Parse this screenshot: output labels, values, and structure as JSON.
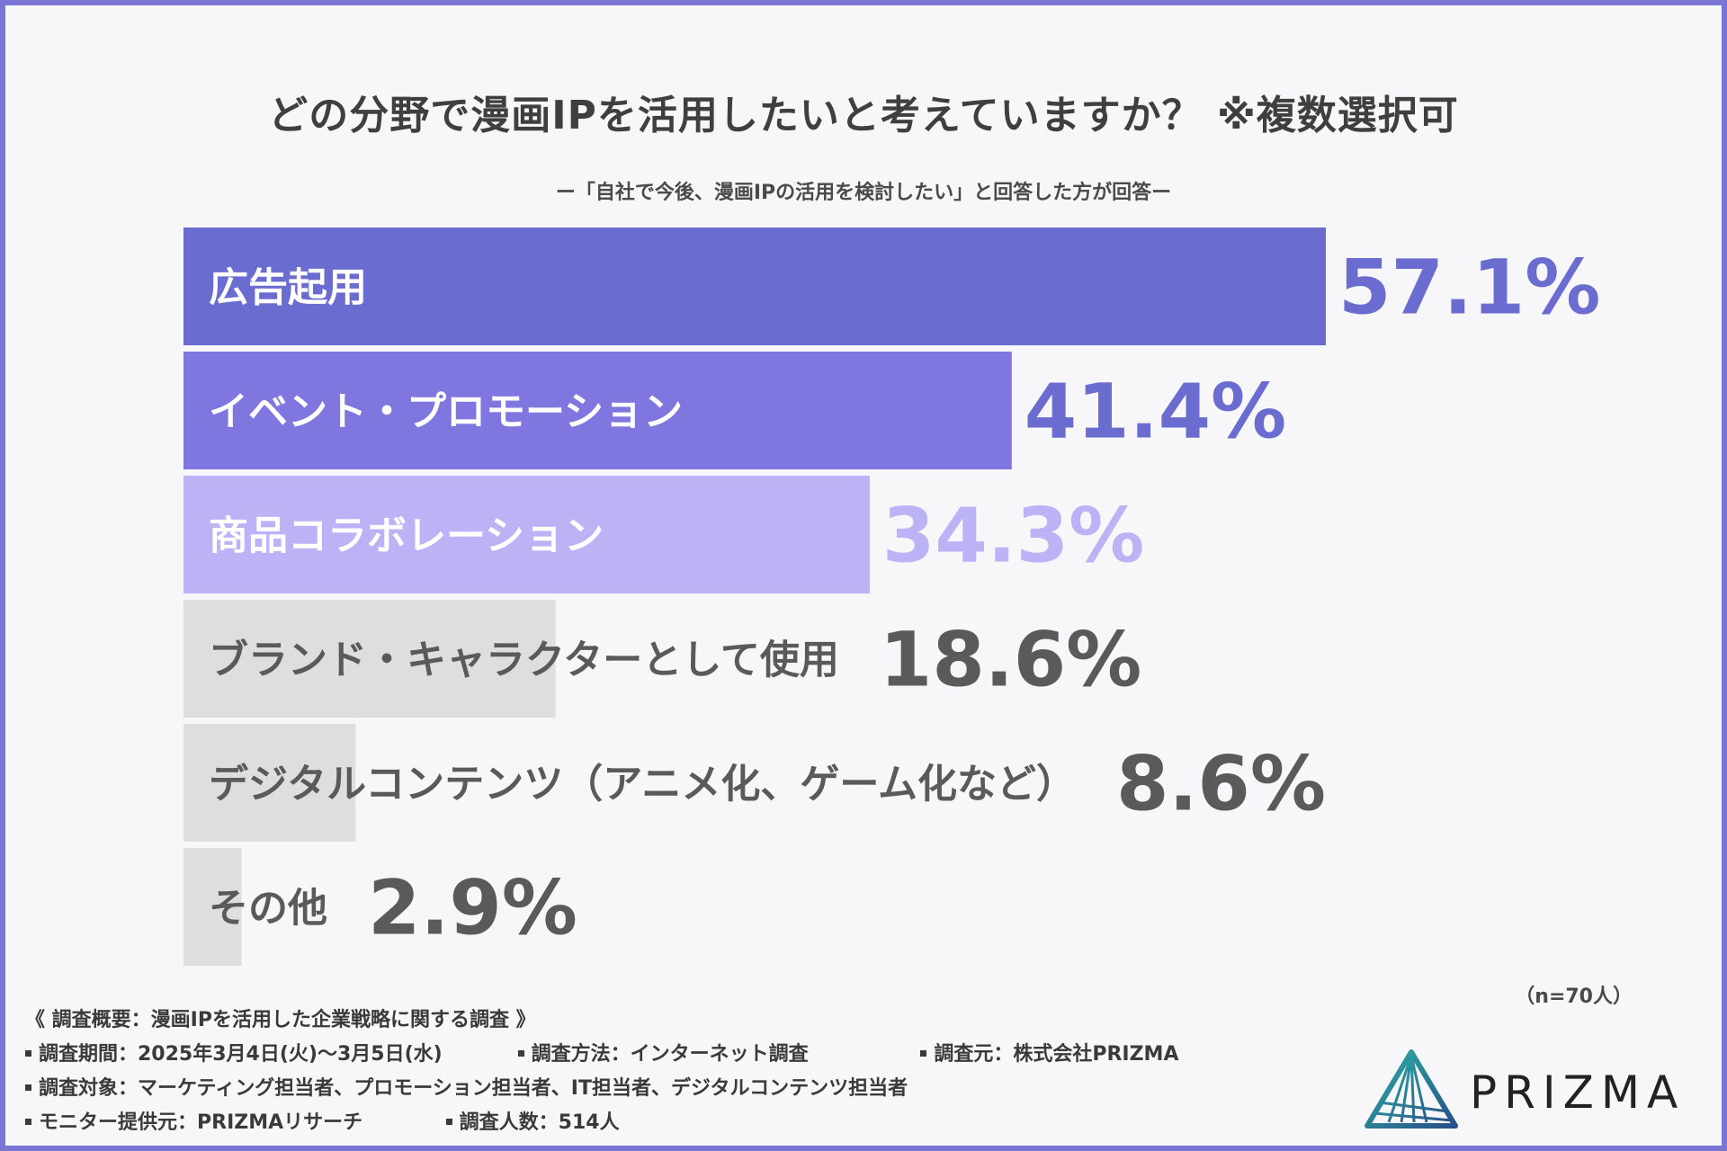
{
  "title": "どの分野で漫画IPを活用したいと考えていますか？ ※複数選択可",
  "subtitle": "ー「自社で今後、漫画IPの活用を検討したい」と回答した方が回答ー",
  "chart_data": {
    "type": "bar",
    "orientation": "horizontal",
    "categories": [
      "広告起用",
      "イベント・プロモーション",
      "商品コラボレーション",
      "ブランド・キャラクターとして使用",
      "デジタルコンテンツ（アニメ化、ゲーム化など）",
      "その他"
    ],
    "values": [
      57.1,
      41.4,
      34.3,
      18.6,
      8.6,
      2.9
    ],
    "value_labels": [
      "57.1%",
      "41.4%",
      "34.3%",
      "18.6%",
      "8.6%",
      "2.9%"
    ],
    "unit": "%",
    "xlim": [
      0,
      100
    ],
    "grid": false,
    "colors": [
      "#6a6ccf",
      "#8076e0",
      "#bcb3f7",
      "#dedede",
      "#dedede",
      "#dedede"
    ],
    "value_colors": [
      "#6a6ccf",
      "#6a6ccf",
      "#bcb3f7",
      "#5a5a5a",
      "#5a5a5a",
      "#5a5a5a"
    ],
    "label_colors": [
      "#ffffff",
      "#ffffff",
      "#ffffff",
      "#5a5a5a",
      "#5a5a5a",
      "#5a5a5a"
    ]
  },
  "sample_note": "（n=70人）",
  "footer": {
    "survey_title": "《 調査概要：漫画IPを活用した企業戦略に関する調査 》",
    "period": "調査期間：2025年3月4日(火)〜3月5日(水)",
    "method": "調査方法：インターネット調査",
    "organizer": "調査元：株式会社PRIZMA",
    "target": "調査対象：マーケティング担当者、プロモーション担当者、IT担当者、デジタルコンテンツ担当者",
    "monitor": "モニター提供元：PRIZMAリサーチ",
    "count": "調査人数：514人"
  },
  "logo": {
    "text": "PRIZMA",
    "color_a": "#2bb0a3",
    "color_b": "#2a4f8a"
  }
}
